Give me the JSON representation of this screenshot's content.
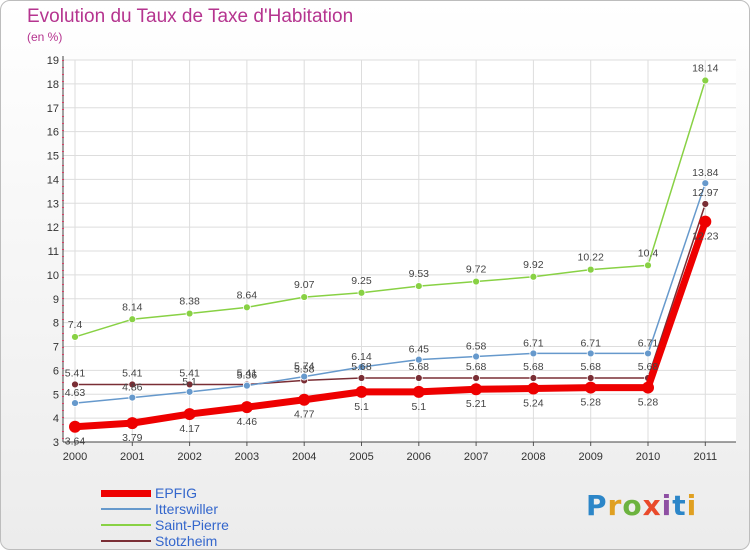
{
  "chart_data": {
    "type": "line",
    "title": "Evolution du Taux de Taxe d'Habitation",
    "subtitle": "(en %)",
    "xlabel": "",
    "ylabel": "",
    "categories": [
      "2000",
      "2001",
      "2002",
      "2003",
      "2004",
      "2005",
      "2006",
      "2007",
      "2008",
      "2009",
      "2010",
      "2011"
    ],
    "ylim": [
      3,
      19
    ],
    "yticks": [
      3,
      4,
      5,
      6,
      7,
      8,
      9,
      10,
      11,
      12,
      13,
      14,
      15,
      16,
      17,
      18,
      19
    ],
    "grid": true,
    "legend_position": "bottom-left",
    "series": [
      {
        "name": "EPFIG",
        "color": "#ee0000",
        "values": [
          3.64,
          3.79,
          4.17,
          4.46,
          4.77,
          5.1,
          5.1,
          5.21,
          5.24,
          5.28,
          5.28,
          12.23
        ],
        "labels": [
          "3.64",
          "3.79",
          "4.17",
          "4.46",
          "4.77",
          "5.1",
          "5.1",
          "5.21",
          "5.24",
          "5.28",
          "5.28",
          "12.23"
        ]
      },
      {
        "name": "Itterswiller",
        "color": "#6699cc",
        "values": [
          4.63,
          4.86,
          5.1,
          5.36,
          5.74,
          6.14,
          6.45,
          6.58,
          6.71,
          6.71,
          6.71,
          13.84
        ],
        "labels": [
          "4.63",
          "4.86",
          "5.1",
          "5.36",
          "5.74",
          "6.14",
          "6.45",
          "6.58",
          "6.71",
          "6.71",
          "6.71",
          "13.84"
        ]
      },
      {
        "name": "Saint-Pierre",
        "color": "#88d144",
        "values": [
          7.4,
          8.14,
          8.38,
          8.64,
          9.07,
          9.25,
          9.53,
          9.72,
          9.92,
          10.22,
          10.4,
          18.14
        ],
        "labels": [
          "7.4",
          "8.14",
          "8.38",
          "8.64",
          "9.07",
          "9.25",
          "9.53",
          "9.72",
          "9.92",
          "10.22",
          "10.4",
          "18.14"
        ]
      },
      {
        "name": "Stotzheim",
        "color": "#7a2e35",
        "values": [
          5.41,
          5.41,
          5.41,
          5.41,
          5.58,
          5.68,
          5.68,
          5.68,
          5.68,
          5.68,
          5.68,
          12.97
        ],
        "labels": [
          "5.41",
          "5.41",
          "5.41",
          "5.41",
          "5.58",
          "5.68",
          "5.68",
          "5.68",
          "5.68",
          "5.68",
          "5.68",
          "12.97"
        ]
      }
    ]
  },
  "logo_text": "Proxiti"
}
